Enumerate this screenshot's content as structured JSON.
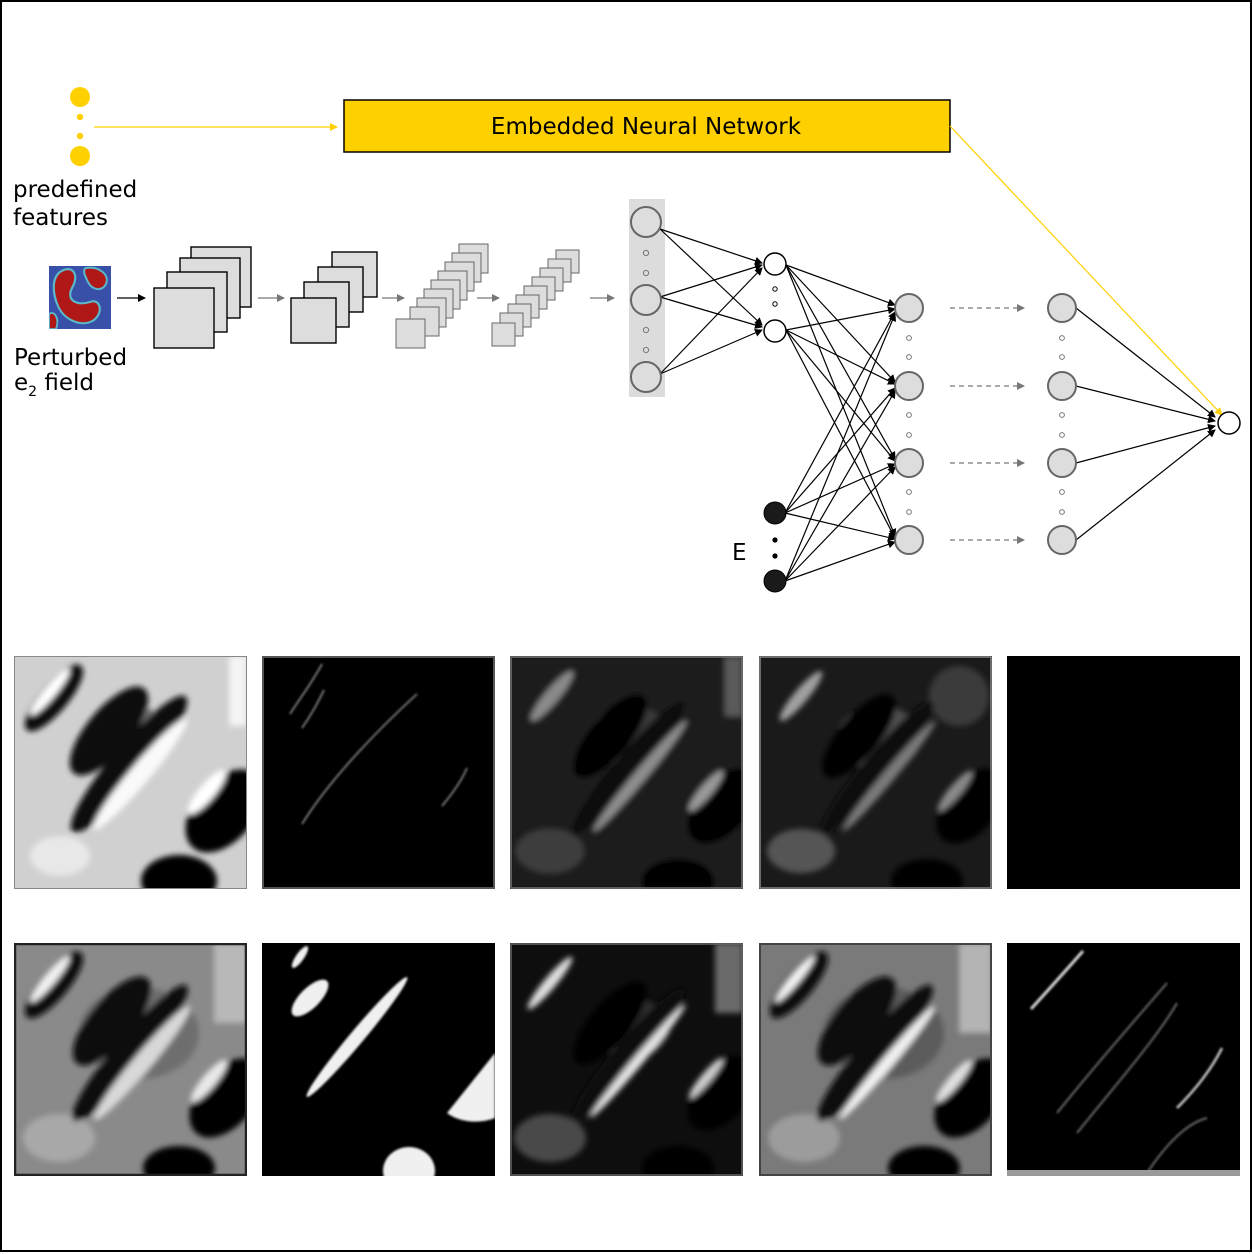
{
  "title_box": {
    "text": "Embedded Neural Network",
    "color": "#FFD000"
  },
  "inputs": {
    "features_label": [
      "predefined",
      "features"
    ],
    "field_label": {
      "line1": "Perturbed",
      "line2_main": "e",
      "line2_sub": "2",
      "line2_rest": " field"
    }
  },
  "energy_label": "E",
  "feature_maps": {
    "rows": 2,
    "cols": 5,
    "description_colors": {
      "background": "#000000",
      "foreground": "#ffffff"
    }
  },
  "colors": {
    "accent": "#FFD000",
    "node_fill": "#dddddd",
    "node_stroke": "#666666",
    "energy_node": "#1a1a1a",
    "field_red": "#b01818",
    "field_blue": "#3850a8"
  }
}
